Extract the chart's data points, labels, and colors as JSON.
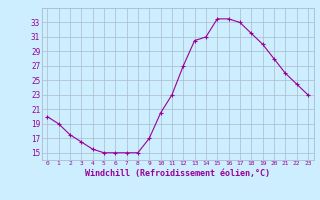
{
  "x": [
    0,
    1,
    2,
    3,
    4,
    5,
    6,
    7,
    8,
    9,
    10,
    11,
    12,
    13,
    14,
    15,
    16,
    17,
    18,
    19,
    20,
    21,
    22,
    23
  ],
  "y": [
    20,
    19,
    17.5,
    16.5,
    15.5,
    15,
    15,
    15,
    15,
    17,
    20.5,
    23,
    27,
    30.5,
    31,
    33.5,
    33.5,
    33,
    31.5,
    30,
    28,
    26,
    24.5,
    23
  ],
  "line_color": "#990099",
  "marker": "+",
  "marker_size": 3,
  "marker_color": "#990099",
  "bg_color": "#cceeff",
  "grid_color": "#aabbcc",
  "xlabel": "Windchill (Refroidissement éolien,°C)",
  "xlabel_color": "#990099",
  "tick_color": "#990099",
  "ylim": [
    14,
    35
  ],
  "yticks": [
    15,
    17,
    19,
    21,
    23,
    25,
    27,
    29,
    31,
    33
  ],
  "xlim": [
    -0.5,
    23.5
  ],
  "xticks": [
    0,
    1,
    2,
    3,
    4,
    5,
    6,
    7,
    8,
    9,
    10,
    11,
    12,
    13,
    14,
    15,
    16,
    17,
    18,
    19,
    20,
    21,
    22,
    23
  ]
}
